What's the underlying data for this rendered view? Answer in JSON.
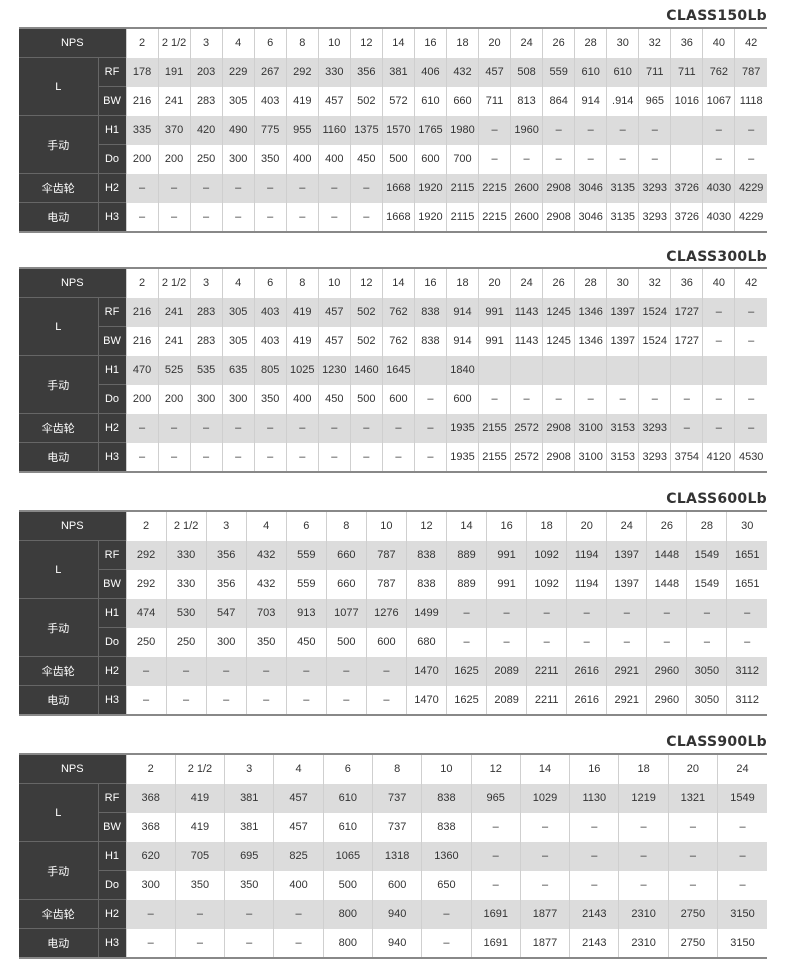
{
  "header_label": "NPS",
  "group_labels": {
    "L": "L",
    "manual": "手动",
    "bevel": "伞齿轮",
    "electric": "电动"
  },
  "sub_labels": [
    "RF",
    "BW",
    "H1",
    "Do",
    "H2",
    "H3"
  ],
  "colors": {
    "header_bg": "#3c3c3c",
    "gray_row": "#dcdcdc"
  },
  "tables": [
    {
      "title": "CLASS150Lb",
      "nps": [
        "2",
        "2 1/2",
        "3",
        "4",
        "6",
        "8",
        "10",
        "12",
        "14",
        "16",
        "18",
        "20",
        "24",
        "26",
        "28",
        "30",
        "32",
        "36",
        "40",
        "42"
      ],
      "rows": [
        [
          "178",
          "191",
          "203",
          "229",
          "267",
          "292",
          "330",
          "356",
          "381",
          "406",
          "432",
          "457",
          "508",
          "559",
          "610",
          "610",
          "711",
          "711",
          "762",
          "787"
        ],
        [
          "216",
          "241",
          "283",
          "305",
          "403",
          "419",
          "457",
          "502",
          "572",
          "610",
          "660",
          "711",
          "813",
          "864",
          "914",
          ".914",
          "965",
          "1016",
          "1067",
          "1118"
        ],
        [
          "335",
          "370",
          "420",
          "490",
          "775",
          "955",
          "1160",
          "1375",
          "1570",
          "1765",
          "1980",
          "–",
          "1960",
          "–",
          "–",
          "–",
          "–",
          "",
          "–",
          "–"
        ],
        [
          "200",
          "200",
          "250",
          "300",
          "350",
          "400",
          "400",
          "450",
          "500",
          "600",
          "700",
          "–",
          "–",
          "–",
          "–",
          "–",
          "–",
          "",
          "–",
          "–"
        ],
        [
          "–",
          "–",
          "–",
          "–",
          "–",
          "–",
          "–",
          "–",
          "1668",
          "1920",
          "2115",
          "2215",
          "2600",
          "2908",
          "3046",
          "3135",
          "3293",
          "3726",
          "4030",
          "4229"
        ],
        [
          "–",
          "–",
          "–",
          "–",
          "–",
          "–",
          "–",
          "–",
          "1668",
          "1920",
          "2115",
          "2215",
          "2600",
          "2908",
          "3046",
          "3135",
          "3293",
          "3726",
          "4030",
          "4229"
        ]
      ]
    },
    {
      "title": "CLASS300Lb",
      "nps": [
        "2",
        "2 1/2",
        "3",
        "4",
        "6",
        "8",
        "10",
        "12",
        "14",
        "16",
        "18",
        "20",
        "24",
        "26",
        "28",
        "30",
        "32",
        "36",
        "40",
        "42"
      ],
      "rows": [
        [
          "216",
          "241",
          "283",
          "305",
          "403",
          "419",
          "457",
          "502",
          "762",
          "838",
          "914",
          "991",
          "1143",
          "1245",
          "1346",
          "1397",
          "1524",
          "1727",
          "–",
          "–"
        ],
        [
          "216",
          "241",
          "283",
          "305",
          "403",
          "419",
          "457",
          "502",
          "762",
          "838",
          "914",
          "991",
          "1143",
          "1245",
          "1346",
          "1397",
          "1524",
          "1727",
          "–",
          "–"
        ],
        [
          "470",
          "525",
          "535",
          "635",
          "805",
          "1025",
          "1230",
          "1460",
          "1645",
          "",
          "1840",
          "",
          "",
          "",
          "",
          "",
          "",
          "",
          "",
          ""
        ],
        [
          "200",
          "200",
          "300",
          "300",
          "350",
          "400",
          "450",
          "500",
          "600",
          "–",
          "600",
          "–",
          "–",
          "–",
          "–",
          "–",
          "–",
          "–",
          "–",
          "–"
        ],
        [
          "–",
          "–",
          "–",
          "–",
          "–",
          "–",
          "–",
          "–",
          "–",
          "–",
          "1935",
          "2155",
          "2572",
          "2908",
          "3100",
          "3153",
          "3293",
          "–",
          "–",
          "–"
        ],
        [
          "–",
          "–",
          "–",
          "–",
          "–",
          "–",
          "–",
          "–",
          "–",
          "–",
          "1935",
          "2155",
          "2572",
          "2908",
          "3100",
          "3153",
          "3293",
          "3754",
          "4120",
          "4530"
        ]
      ]
    },
    {
      "title": "CLASS600Lb",
      "nps": [
        "2",
        "2 1/2",
        "3",
        "4",
        "6",
        "8",
        "10",
        "12",
        "14",
        "16",
        "18",
        "20",
        "24",
        "26",
        "28",
        "30"
      ],
      "rows": [
        [
          "292",
          "330",
          "356",
          "432",
          "559",
          "660",
          "787",
          "838",
          "889",
          "991",
          "1092",
          "1194",
          "1397",
          "1448",
          "1549",
          "1651"
        ],
        [
          "292",
          "330",
          "356",
          "432",
          "559",
          "660",
          "787",
          "838",
          "889",
          "991",
          "1092",
          "1194",
          "1397",
          "1448",
          "1549",
          "1651"
        ],
        [
          "474",
          "530",
          "547",
          "703",
          "913",
          "1077",
          "1276",
          "1499",
          "–",
          "–",
          "–",
          "–",
          "–",
          "–",
          "–",
          "–"
        ],
        [
          "250",
          "250",
          "300",
          "350",
          "450",
          "500",
          "600",
          "680",
          "–",
          "–",
          "–",
          "–",
          "–",
          "–",
          "–",
          "–"
        ],
        [
          "–",
          "–",
          "–",
          "–",
          "–",
          "–",
          "–",
          "1470",
          "1625",
          "2089",
          "2211",
          "2616",
          "2921",
          "2960",
          "3050",
          "3112"
        ],
        [
          "–",
          "–",
          "–",
          "–",
          "–",
          "–",
          "–",
          "1470",
          "1625",
          "2089",
          "2211",
          "2616",
          "2921",
          "2960",
          "3050",
          "3112"
        ]
      ]
    },
    {
      "title": "CLASS900Lb",
      "nps": [
        "2",
        "2 1/2",
        "3",
        "4",
        "6",
        "8",
        "10",
        "12",
        "14",
        "16",
        "18",
        "20",
        "24"
      ],
      "rows": [
        [
          "368",
          "419",
          "381",
          "457",
          "610",
          "737",
          "838",
          "965",
          "1029",
          "1130",
          "1219",
          "1321",
          "1549"
        ],
        [
          "368",
          "419",
          "381",
          "457",
          "610",
          "737",
          "838",
          "–",
          "–",
          "–",
          "–",
          "–",
          "–"
        ],
        [
          "620",
          "705",
          "695",
          "825",
          "1065",
          "1318",
          "1360",
          "–",
          "–",
          "–",
          "–",
          "–",
          "–"
        ],
        [
          "300",
          "350",
          "350",
          "400",
          "500",
          "600",
          "650",
          "–",
          "–",
          "–",
          "–",
          "–",
          "–"
        ],
        [
          "–",
          "–",
          "–",
          "–",
          "800",
          "940",
          "–",
          "1691",
          "1877",
          "2143",
          "2310",
          "2750",
          "3150"
        ],
        [
          "–",
          "–",
          "–",
          "–",
          "800",
          "940",
          "–",
          "1691",
          "1877",
          "2143",
          "2310",
          "2750",
          "3150"
        ]
      ]
    }
  ]
}
